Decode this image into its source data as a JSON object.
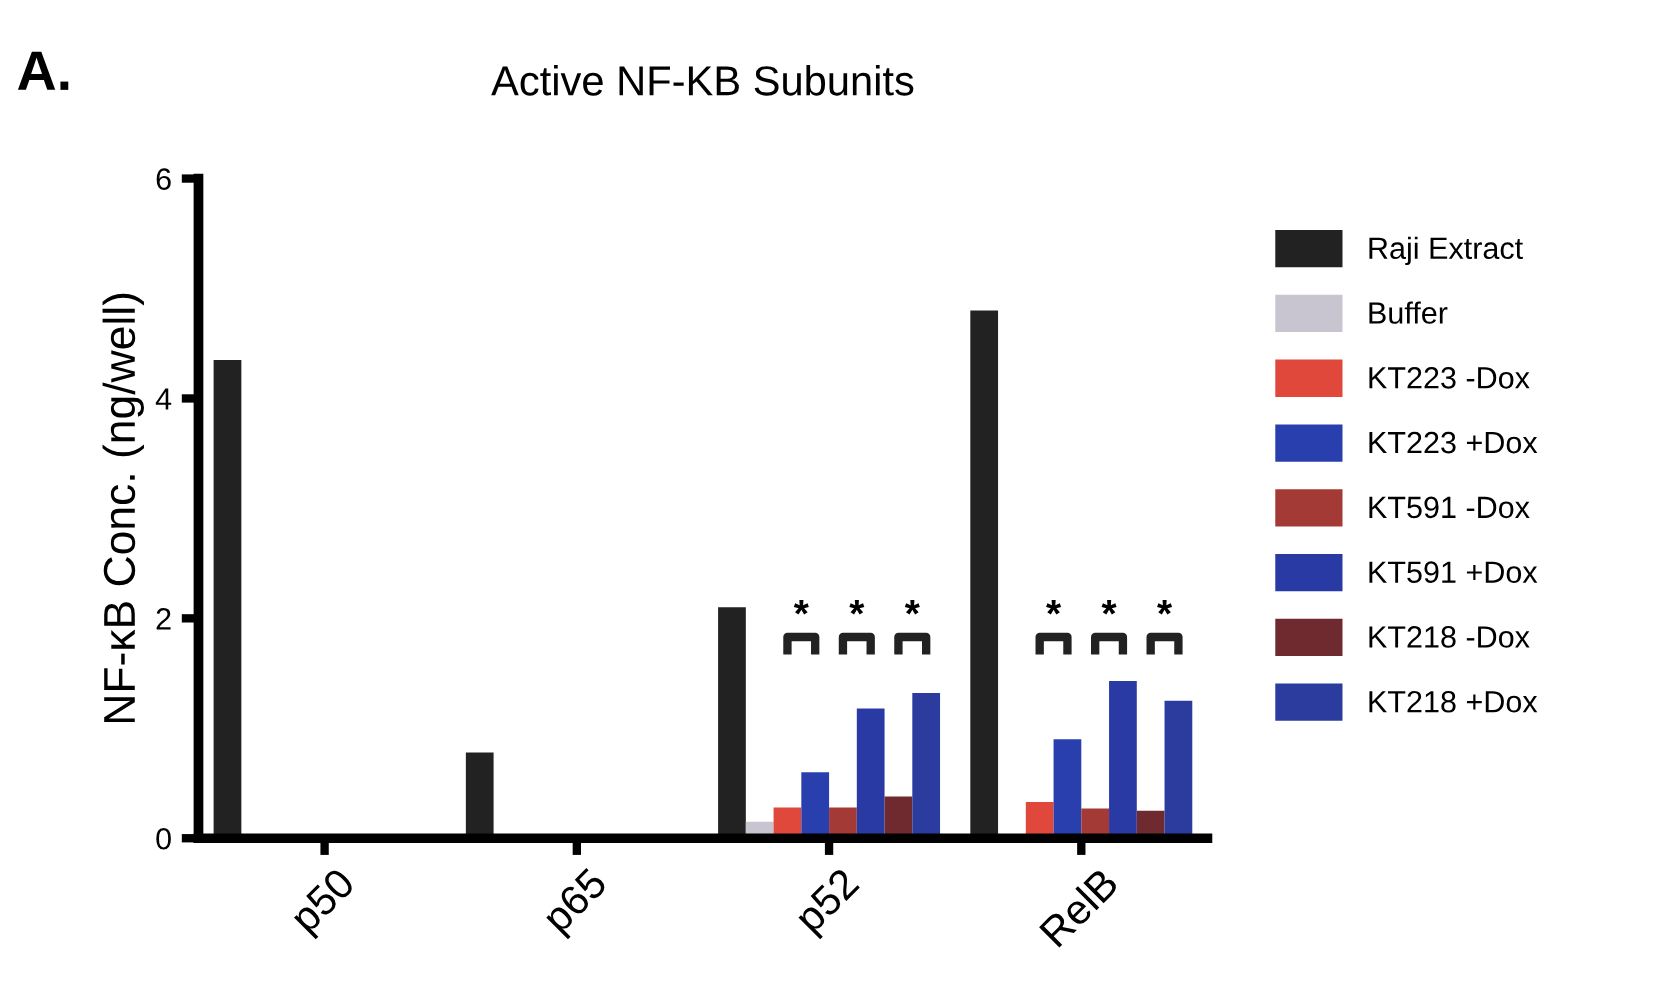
{
  "chart_data": {
    "type": "bar",
    "title": "Active NF-KB Subunits",
    "ylabel": "NF-κB Conc. (ng/well)",
    "categories": [
      "p50",
      "p65",
      "p52",
      "RelB"
    ],
    "series": [
      {
        "name": "Raji Extract",
        "color": "#222222",
        "values": [
          4.35,
          0.78,
          2.1,
          4.8
        ]
      },
      {
        "name": "Buffer",
        "color": "#c8c4d0",
        "values": [
          0,
          0,
          0.15,
          0
        ]
      },
      {
        "name": "KT223 -Dox",
        "color": "#e0483c",
        "values": [
          0,
          0,
          0.28,
          0.33
        ]
      },
      {
        "name": "KT223 +Dox",
        "color": "#2a3fae",
        "values": [
          0,
          0,
          0.6,
          0.9
        ]
      },
      {
        "name": "KT591 -Dox",
        "color": "#a33a35",
        "values": [
          0,
          0,
          0.28,
          0.27
        ]
      },
      {
        "name": "KT591 +Dox",
        "color": "#2a3aa5",
        "values": [
          0,
          0,
          1.18,
          1.43
        ]
      },
      {
        "name": "KT218 -Dox",
        "color": "#6e2a2e",
        "values": [
          0,
          0,
          0.38,
          0.25
        ]
      },
      {
        "name": "KT218 +Dox",
        "color": "#2c3c9e",
        "values": [
          0,
          0,
          1.32,
          1.25
        ]
      }
    ],
    "ylim": [
      0,
      6
    ],
    "yticks": [
      0,
      2,
      4,
      6
    ],
    "grid": false,
    "legend": "right",
    "annotations": [
      "A.",
      "*",
      "*",
      "*",
      "*",
      "*",
      "*"
    ]
  }
}
